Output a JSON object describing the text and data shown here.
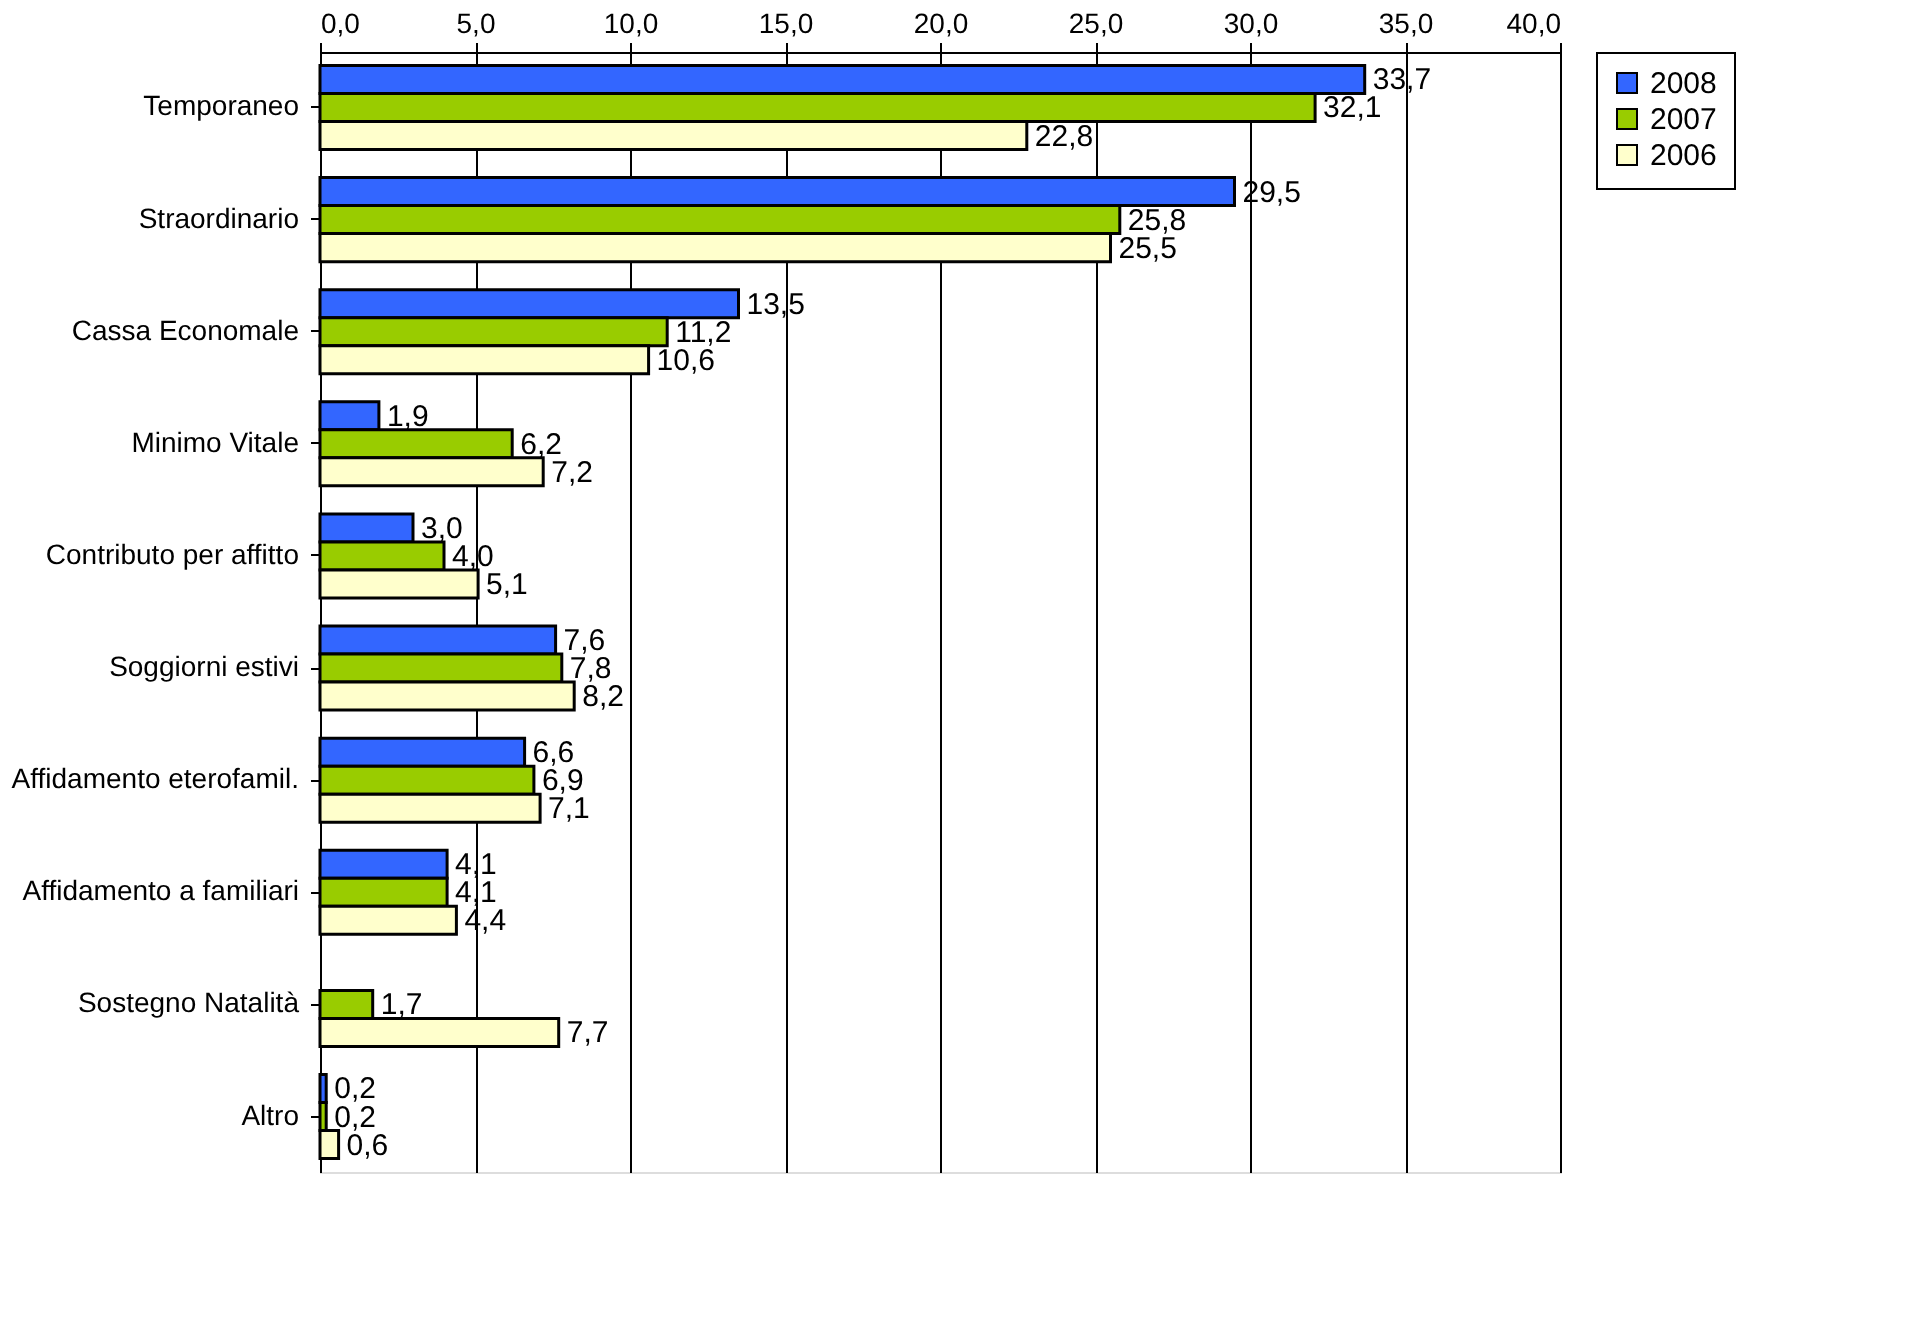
{
  "chart_data": {
    "type": "bar",
    "orientation": "horizontal",
    "categories": [
      "Temporaneo",
      "Straordinario",
      "Cassa Economale",
      "Minimo Vitale",
      "Contributo per affitto",
      "Soggiorni estivi ",
      "Affidamento eterofamil.",
      "Affidamento a familiari",
      "Sostegno Natalità",
      "Altro"
    ],
    "series": [
      {
        "name": "2008",
        "color": "#3366ff",
        "values": [
          33.7,
          29.5,
          13.5,
          1.9,
          3.0,
          7.6,
          6.6,
          4.1,
          null,
          0.2
        ],
        "value_labels": [
          "33,7",
          "29,5",
          "13,5",
          "1,9",
          "3,0",
          "7,6",
          "6,6",
          "4,1",
          null,
          "0,2"
        ]
      },
      {
        "name": "2007",
        "color": "#99cc00",
        "values": [
          32.1,
          25.8,
          11.2,
          6.2,
          4.0,
          7.8,
          6.9,
          4.1,
          1.7,
          0.2
        ],
        "value_labels": [
          "32,1",
          "25,8",
          "11,2",
          "6,2",
          "4,0",
          "7,8",
          "6,9",
          "4,1",
          "1,7",
          "0,2"
        ]
      },
      {
        "name": "2006",
        "color": "#ffffcc",
        "values": [
          22.8,
          25.5,
          10.6,
          7.2,
          5.1,
          8.2,
          7.1,
          4.4,
          7.7,
          0.6
        ],
        "value_labels": [
          "22,8",
          "25,5",
          "10,6",
          "7,2",
          "5,1",
          "8,2",
          "7,1",
          "4,4",
          "7,7",
          "0,6"
        ]
      }
    ],
    "xlim": [
      0,
      40
    ],
    "xticks": [
      {
        "value": 0,
        "label": "0,0"
      },
      {
        "value": 5,
        "label": "5,0"
      },
      {
        "value": 10,
        "label": "10,0"
      },
      {
        "value": 15,
        "label": "15,0"
      },
      {
        "value": 20,
        "label": "20,0"
      },
      {
        "value": 25,
        "label": "25,0"
      },
      {
        "value": 30,
        "label": "30,0"
      },
      {
        "value": 35,
        "label": "35,0"
      },
      {
        "value": 40,
        "label": "40,0"
      }
    ],
    "grid": "x",
    "legend": "right"
  }
}
